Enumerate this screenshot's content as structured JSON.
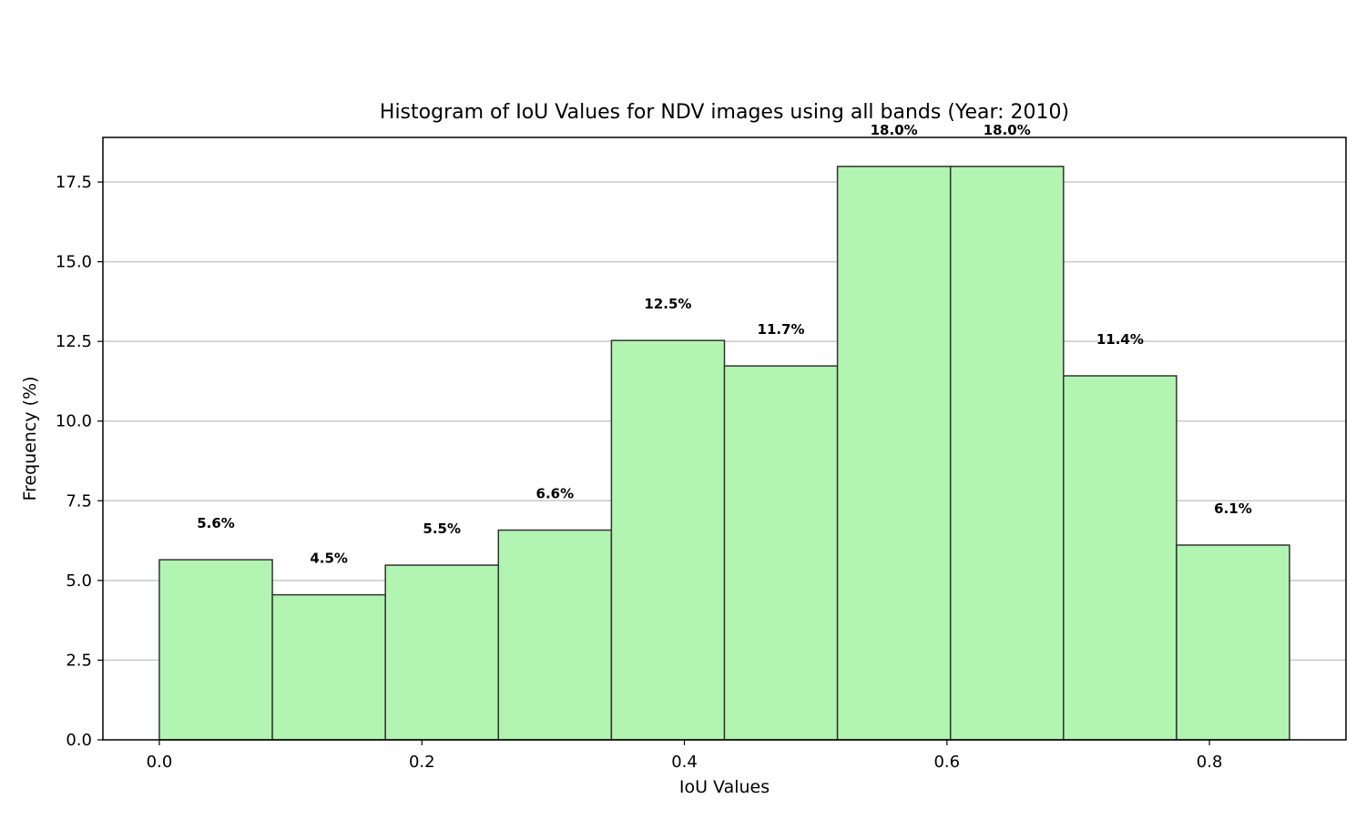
{
  "chart_data": {
    "type": "bar",
    "title": "Histogram of IoU Values for NDV images using all bands (Year: 2010)",
    "xlabel": "IoU Values",
    "ylabel": "Frequency (%)",
    "bin_edges": [
      0.0,
      0.0861,
      0.1722,
      0.2583,
      0.3444,
      0.4305,
      0.5166,
      0.6027,
      0.6888,
      0.7749,
      0.861
    ],
    "values": [
      5.65,
      4.55,
      5.48,
      6.58,
      12.53,
      11.73,
      17.99,
      17.99,
      11.42,
      6.11
    ],
    "value_labels": [
      "5.6%",
      "4.5%",
      "5.5%",
      "6.6%",
      "12.5%",
      "11.7%",
      "18.0%",
      "18.0%",
      "11.4%",
      "6.1%"
    ],
    "xlim": [
      -0.043,
      0.904
    ],
    "ylim": [
      0,
      18.9
    ],
    "xticks": [
      0.0,
      0.2,
      0.4,
      0.6,
      0.8
    ],
    "xtick_labels": [
      "0.0",
      "0.2",
      "0.4",
      "0.6",
      "0.8"
    ],
    "yticks": [
      0.0,
      2.5,
      5.0,
      7.5,
      10.0,
      12.5,
      15.0,
      17.5
    ],
    "ytick_labels": [
      "0.0",
      "2.5",
      "5.0",
      "7.5",
      "10.0",
      "12.5",
      "15.0",
      "17.5"
    ],
    "grid": "y",
    "colors": {
      "bar_fill": "#b2f4b2",
      "bar_edge": "#333333",
      "grid": "#c8c8c8",
      "axis": "#000000"
    }
  }
}
